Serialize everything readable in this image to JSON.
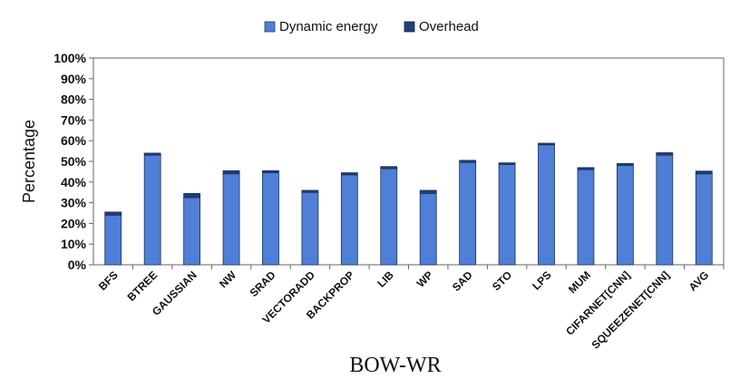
{
  "chart_data": {
    "type": "bar",
    "stacked": true,
    "categories": [
      "BFS",
      "BTREE",
      "GAUSSIAN",
      "NW",
      "SRAD",
      "VECTORADD",
      "BACKPROP",
      "LIB",
      "WP",
      "SAD",
      "STO",
      "LPS",
      "MUM",
      "CIFARNET[CNN]",
      "SQUEEZENET[CNN]",
      "AVG"
    ],
    "series": [
      {
        "name": "Dynamic energy",
        "color": "#4f7fd6",
        "values": [
          24,
          53,
          32.5,
          44,
          44.5,
          35,
          43.5,
          46.5,
          34.5,
          49.5,
          48.5,
          58,
          46,
          48,
          53,
          44
        ]
      },
      {
        "name": "Overhead",
        "color": "#1f3f7a",
        "values": [
          1.5,
          1,
          2,
          1.5,
          1,
          1,
          1,
          1,
          1.5,
          1,
          0.8,
          0.8,
          1,
          1,
          1.2,
          1.3
        ]
      }
    ],
    "xlabel": "BOW-WR",
    "ylabel": "Percentage",
    "ylim": [
      0,
      100
    ],
    "yticks": [
      "0%",
      "10%",
      "20%",
      "30%",
      "40%",
      "50%",
      "60%",
      "70%",
      "80%",
      "90%",
      "100%"
    ],
    "legend_position": "top",
    "grid": false
  }
}
